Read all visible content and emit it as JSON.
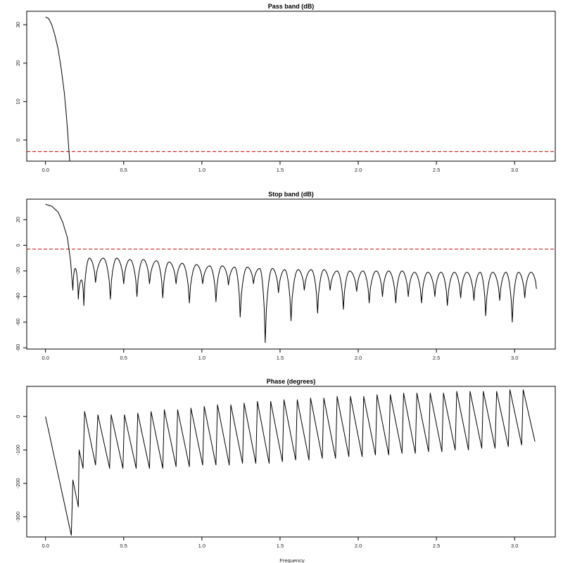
{
  "xlabel": "Frequency",
  "chart_data": [
    {
      "type": "line",
      "title": "Pass band (dB)",
      "xlim": [
        -0.12,
        3.26
      ],
      "ylim": [
        -5.5,
        33.5
      ],
      "xticks": [
        0.0,
        0.5,
        1.0,
        1.5,
        2.0,
        2.5,
        3.0
      ],
      "xtick_labels": [
        "0.0",
        "0.5",
        "1.0",
        "1.5",
        "2.0",
        "2.5",
        "3.0"
      ],
      "yticks": [
        0,
        10,
        20,
        30
      ],
      "ytick_labels": [
        "0",
        "10",
        "20",
        "30"
      ],
      "reference_line": {
        "y": -3,
        "color": "#cc0000",
        "style": "dashed"
      },
      "series": [
        {
          "x": [
            0.0,
            0.02,
            0.04,
            0.06,
            0.08,
            0.1,
            0.12,
            0.13,
            0.14,
            0.15,
            0.155
          ],
          "y": [
            32.0,
            31.6,
            30.0,
            27.3,
            23.8,
            18.7,
            12.4,
            8.0,
            3.0,
            -3.0,
            -5.5
          ]
        }
      ]
    },
    {
      "type": "line",
      "title": "Stop band (dB)",
      "xlim": [
        -0.12,
        3.26
      ],
      "ylim": [
        -81,
        36
      ],
      "xticks": [
        0.0,
        0.5,
        1.0,
        1.5,
        2.0,
        2.5,
        3.0
      ],
      "xtick_labels": [
        "0.0",
        "0.5",
        "1.0",
        "1.5",
        "2.0",
        "2.5",
        "3.0"
      ],
      "yticks": [
        -80,
        -60,
        -40,
        -20,
        0,
        20
      ],
      "ytick_labels": [
        "-80",
        "-60",
        "-40",
        "-20",
        "0",
        "20"
      ],
      "reference_line": {
        "y": -3,
        "color": "#cc0000",
        "style": "dashed"
      },
      "envelope": {
        "x": [
          0.0,
          0.04,
          0.08,
          0.11,
          0.14,
          0.16,
          0.175
        ],
        "y": [
          32.0,
          30.5,
          26.0,
          18.0,
          6.0,
          -12.0,
          -35.0
        ]
      },
      "nulls": [
        {
          "x": 0.175,
          "y": -35
        },
        {
          "x": 0.21,
          "y": -42
        },
        {
          "x": 0.245,
          "y": -47
        },
        {
          "x": 0.32,
          "y": -29
        },
        {
          "x": 0.415,
          "y": -42
        },
        {
          "x": 0.5,
          "y": -30
        },
        {
          "x": 0.585,
          "y": -40
        },
        {
          "x": 0.665,
          "y": -30
        },
        {
          "x": 0.75,
          "y": -41
        },
        {
          "x": 0.835,
          "y": -30
        },
        {
          "x": 0.92,
          "y": -45
        },
        {
          "x": 1.005,
          "y": -30
        },
        {
          "x": 1.09,
          "y": -44
        },
        {
          "x": 1.17,
          "y": -31
        },
        {
          "x": 1.245,
          "y": -56
        },
        {
          "x": 1.33,
          "y": -30
        },
        {
          "x": 1.405,
          "y": -76
        },
        {
          "x": 1.49,
          "y": -37
        },
        {
          "x": 1.57,
          "y": -59
        },
        {
          "x": 1.655,
          "y": -35
        },
        {
          "x": 1.74,
          "y": -53
        },
        {
          "x": 1.82,
          "y": -35
        },
        {
          "x": 1.905,
          "y": -50
        },
        {
          "x": 1.99,
          "y": -36
        },
        {
          "x": 2.07,
          "y": -45
        },
        {
          "x": 2.155,
          "y": -40
        },
        {
          "x": 2.24,
          "y": -45
        },
        {
          "x": 2.32,
          "y": -40
        },
        {
          "x": 2.405,
          "y": -45
        },
        {
          "x": 2.49,
          "y": -40
        },
        {
          "x": 2.57,
          "y": -47
        },
        {
          "x": 2.655,
          "y": -41
        },
        {
          "x": 2.74,
          "y": -43
        },
        {
          "x": 2.815,
          "y": -55
        },
        {
          "x": 2.905,
          "y": -43
        },
        {
          "x": 2.985,
          "y": -60
        },
        {
          "x": 3.065,
          "y": -41
        },
        {
          "x": 3.14,
          "y": -34
        }
      ],
      "peaks": [
        {
          "x": 0.19,
          "y": -18
        },
        {
          "x": 0.23,
          "y": -27
        },
        {
          "x": 0.28,
          "y": -10
        },
        {
          "x": 0.37,
          "y": -10
        },
        {
          "x": 0.455,
          "y": -10
        },
        {
          "x": 0.54,
          "y": -11
        },
        {
          "x": 0.625,
          "y": -11
        },
        {
          "x": 0.71,
          "y": -12
        },
        {
          "x": 0.79,
          "y": -13
        },
        {
          "x": 0.875,
          "y": -14
        },
        {
          "x": 0.965,
          "y": -15
        },
        {
          "x": 1.05,
          "y": -16
        },
        {
          "x": 1.13,
          "y": -16
        },
        {
          "x": 1.21,
          "y": -17
        },
        {
          "x": 1.29,
          "y": -17
        },
        {
          "x": 1.37,
          "y": -18
        },
        {
          "x": 1.45,
          "y": -18
        },
        {
          "x": 1.53,
          "y": -19
        },
        {
          "x": 1.615,
          "y": -19
        },
        {
          "x": 1.7,
          "y": -19
        },
        {
          "x": 1.78,
          "y": -19
        },
        {
          "x": 1.865,
          "y": -20
        },
        {
          "x": 1.945,
          "y": -20
        },
        {
          "x": 2.03,
          "y": -20
        },
        {
          "x": 2.115,
          "y": -20
        },
        {
          "x": 2.195,
          "y": -20
        },
        {
          "x": 2.28,
          "y": -20
        },
        {
          "x": 2.36,
          "y": -21
        },
        {
          "x": 2.445,
          "y": -21
        },
        {
          "x": 2.53,
          "y": -21
        },
        {
          "x": 2.615,
          "y": -21
        },
        {
          "x": 2.695,
          "y": -21
        },
        {
          "x": 2.78,
          "y": -21
        },
        {
          "x": 2.86,
          "y": -21
        },
        {
          "x": 2.945,
          "y": -21
        },
        {
          "x": 3.025,
          "y": -21
        },
        {
          "x": 3.105,
          "y": -21
        }
      ]
    },
    {
      "type": "line",
      "title": "Phase (degrees)",
      "xlim": [
        -0.12,
        3.26
      ],
      "ylim": [
        -360,
        90
      ],
      "xticks": [
        0.0,
        0.5,
        1.0,
        1.5,
        2.0,
        2.5,
        3.0
      ],
      "xtick_labels": [
        "0.0",
        "0.5",
        "1.0",
        "1.5",
        "2.0",
        "2.5",
        "3.0"
      ],
      "yticks": [
        -300,
        -200,
        -100,
        0
      ],
      "ytick_labels": [
        "-300",
        "-200",
        "-100",
        "0"
      ],
      "series": [
        {
          "x": [
            0.0,
            0.165,
            0.175,
            0.21,
            0.215,
            0.24,
            0.25,
            0.32,
            0.335,
            0.41,
            0.42,
            0.495,
            0.505,
            0.58,
            0.59,
            0.665,
            0.675,
            0.75,
            0.76,
            0.835,
            0.845,
            0.92,
            0.93,
            1.005,
            1.015,
            1.09,
            1.1,
            1.175,
            1.185,
            1.26,
            1.27,
            1.345,
            1.355,
            1.43,
            1.44,
            1.515,
            1.525,
            1.6,
            1.61,
            1.685,
            1.695,
            1.77,
            1.78,
            1.855,
            1.865,
            1.94,
            1.95,
            2.025,
            2.035,
            2.11,
            2.12,
            2.195,
            2.205,
            2.28,
            2.29,
            2.365,
            2.375,
            2.45,
            2.46,
            2.535,
            2.545,
            2.62,
            2.63,
            2.705,
            2.715,
            2.79,
            2.8,
            2.875,
            2.885,
            2.96,
            2.97,
            3.045,
            3.055,
            3.13
          ],
          "y": [
            0,
            -355,
            -190,
            -270,
            -100,
            -155,
            15,
            -145,
            5,
            -155,
            5,
            -155,
            5,
            -155,
            10,
            -155,
            15,
            -155,
            20,
            -150,
            20,
            -150,
            25,
            -145,
            30,
            -145,
            35,
            -145,
            35,
            -140,
            40,
            -140,
            45,
            -140,
            45,
            -135,
            50,
            -130,
            50,
            -130,
            55,
            -125,
            55,
            -125,
            60,
            -120,
            60,
            -120,
            60,
            -115,
            65,
            -115,
            65,
            -110,
            70,
            -110,
            70,
            -105,
            70,
            -105,
            70,
            -100,
            75,
            -100,
            75,
            -95,
            75,
            -95,
            75,
            -90,
            80,
            -85,
            80,
            -75
          ]
        }
      ]
    }
  ]
}
